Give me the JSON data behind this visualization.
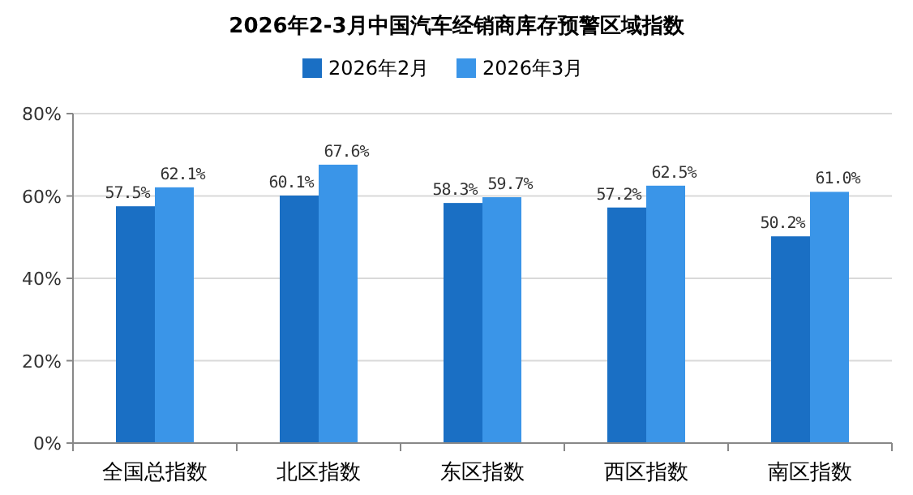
{
  "chart_data": {
    "type": "bar",
    "title": "2026年2-3月中国汽车经销商库存预警区域指数",
    "categories": [
      "全国总指数",
      "北区指数",
      "东区指数",
      "西区指数",
      "南区指数"
    ],
    "series": [
      {
        "name": "2026年2月",
        "color": "#1a6fc4",
        "values": [
          57.5,
          60.1,
          58.3,
          57.2,
          50.2
        ],
        "value_labels": [
          "57.5%",
          "60.1%",
          "58.3%",
          "57.2%",
          "50.2%"
        ]
      },
      {
        "name": "2026年3月",
        "color": "#3a95e8",
        "values": [
          62.1,
          67.6,
          59.7,
          62.5,
          61.0
        ],
        "value_labels": [
          "62.1%",
          "67.6%",
          "59.7%",
          "62.5%",
          "61.0%"
        ]
      }
    ],
    "ylim": [
      0,
      80
    ],
    "yticks": [
      {
        "value": 0,
        "label": "0%"
      },
      {
        "value": 20,
        "label": "20%"
      },
      {
        "value": 40,
        "label": "40%"
      },
      {
        "value": 60,
        "label": "60%"
      },
      {
        "value": 80,
        "label": "80%"
      }
    ],
    "grid": "y",
    "legend": "top"
  }
}
